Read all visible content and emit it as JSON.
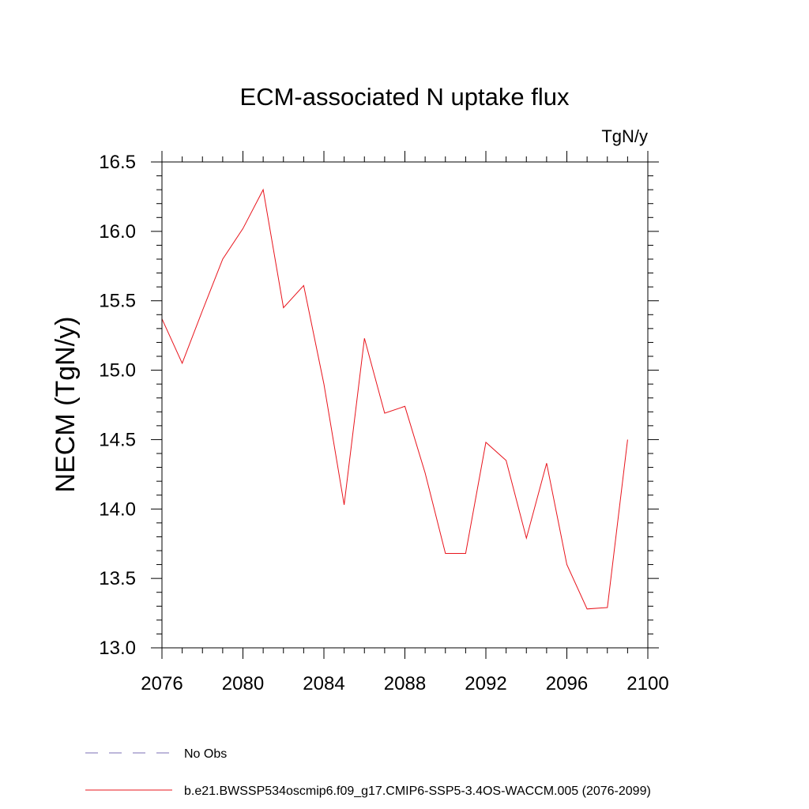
{
  "chart_data": {
    "type": "line",
    "title": "ECM-associated N uptake flux",
    "units_label": "TgN/y",
    "ylabel": "NECM  (TgN/y)",
    "xlabel": "",
    "xlim": [
      2076,
      2100
    ],
    "ylim": [
      13.0,
      16.5
    ],
    "x_ticks": [
      2076,
      2080,
      2084,
      2088,
      2092,
      2096,
      2100
    ],
    "y_ticks": [
      "13.0",
      "13.5",
      "14.0",
      "14.5",
      "15.0",
      "15.5",
      "16.0",
      "16.5"
    ],
    "grid": false,
    "legend_placement": "bottom-left",
    "series": [
      {
        "name": "b.e21.BWSSP534oscmip6.f09_g17.CMIP6-SSP5-3.4OS-WACCM.005 (2076-2099)",
        "color": "#e8141c",
        "style": "solid",
        "x": [
          2076,
          2077,
          2078,
          2079,
          2080,
          2081,
          2082,
          2083,
          2084,
          2085,
          2086,
          2087,
          2088,
          2089,
          2090,
          2091,
          2092,
          2093,
          2094,
          2095,
          2096,
          2097,
          2098,
          2099
        ],
        "values": [
          15.37,
          15.05,
          15.43,
          15.8,
          16.02,
          16.3,
          15.45,
          15.61,
          14.9,
          14.03,
          15.23,
          14.69,
          14.74,
          14.26,
          13.68,
          13.68,
          14.48,
          14.35,
          13.79,
          14.33,
          13.6,
          13.28,
          13.29,
          14.5
        ]
      }
    ],
    "legend": [
      {
        "label": "No Obs",
        "color": "#7b6fb5",
        "style": "dashed"
      },
      {
        "label": "b.e21.BWSSP534oscmip6.f09_g17.CMIP6-SSP5-3.4OS-WACCM.005 (2076-2099)",
        "color": "#e8141c",
        "style": "solid"
      }
    ]
  }
}
